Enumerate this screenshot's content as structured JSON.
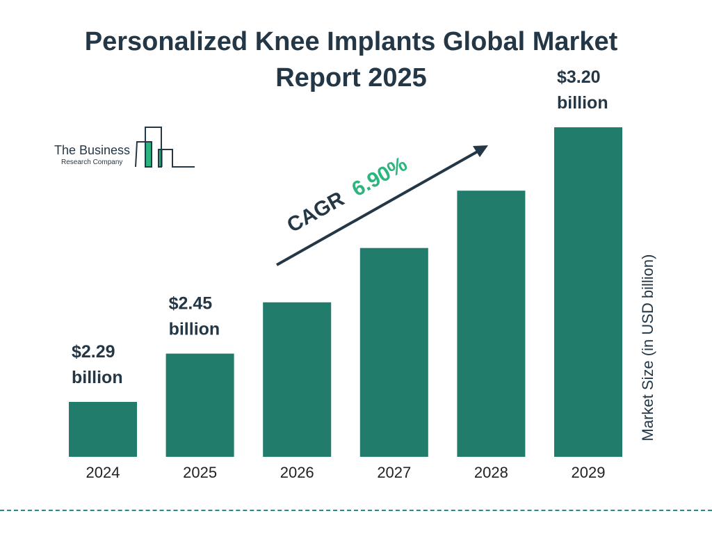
{
  "title": "Personalized Knee Implants Global Market Report 2025",
  "logo": {
    "line1": "The Business",
    "line2": "Research Company"
  },
  "chart_data": {
    "type": "bar",
    "title": "Personalized Knee Implants Global Market Report 2025",
    "categories": [
      "2024",
      "2025",
      "2026",
      "2027",
      "2028",
      "2029"
    ],
    "values": [
      2.29,
      2.45,
      2.62,
      2.8,
      2.99,
      3.2
    ],
    "data_labels": [
      "$2.29 billion",
      "$2.45 billion",
      "",
      "",
      "",
      "$3.20 billion"
    ],
    "xlabel": "",
    "ylabel": "Market Size (in USD billion)",
    "annotation": {
      "text": "CAGR",
      "value": "6.90%"
    },
    "grid": false,
    "bar_color": "#217c6c",
    "accent_color": "#2cb57e"
  }
}
